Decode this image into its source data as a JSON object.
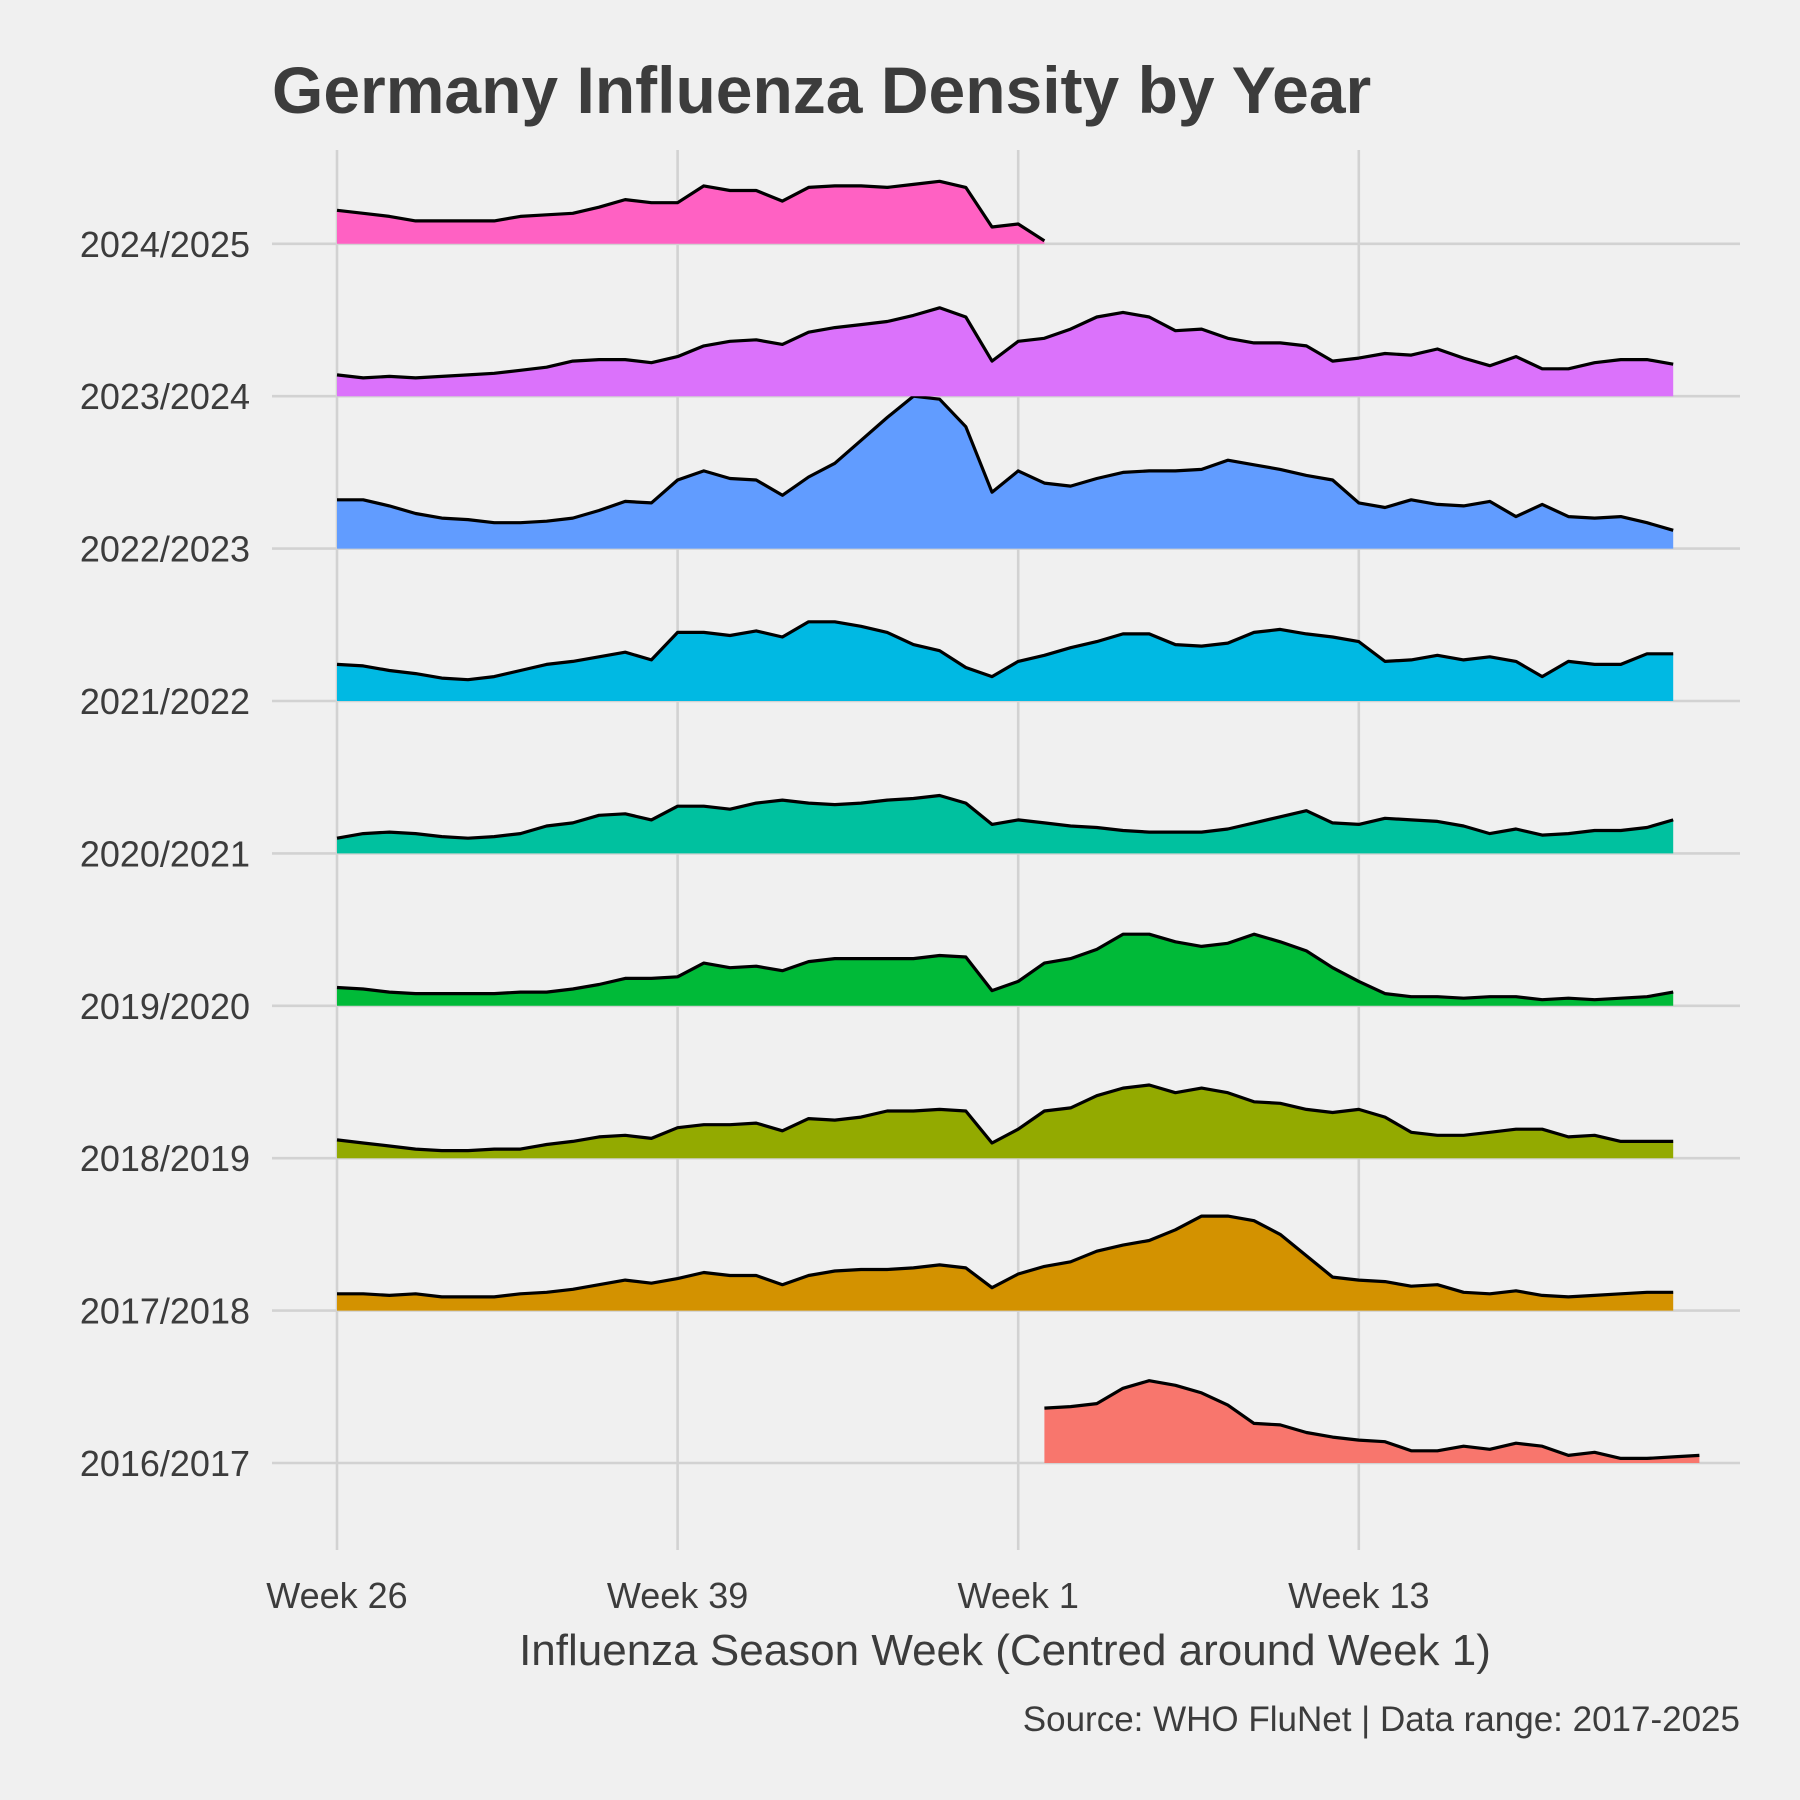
{
  "colors": {
    "background": "#f0f0f0",
    "grid": "#d2d2d2",
    "text": "#3c3c3c",
    "outline": "#000000"
  },
  "chart_data": {
    "type": "ridgeline-area",
    "title": "Germany Influenza Density by Year",
    "xlabel": "Influenza Season Week (Centred around Week 1)",
    "ylabel": "",
    "caption": "Source: WHO FluNet | Data range: 2017-2025",
    "x_axis": {
      "unit": "season week index (0 = Week 26, 26 = Week 1)",
      "range": [
        0,
        52
      ],
      "ticks": [
        {
          "value": 0,
          "label": "Week 26"
        },
        {
          "value": 13,
          "label": "Week 39"
        },
        {
          "value": 26,
          "label": "Week 1"
        },
        {
          "value": 39,
          "label": "Week 13"
        }
      ]
    },
    "ridge_spacing": 1.0,
    "series": [
      {
        "name": "2016/2017",
        "color": "#F8766D",
        "start": 27,
        "values": [
          0.36,
          0.37,
          0.39,
          0.49,
          0.54,
          0.51,
          0.46,
          0.38,
          0.26,
          0.25,
          0.2,
          0.17,
          0.15,
          0.14,
          0.08,
          0.08,
          0.11,
          0.09,
          0.13,
          0.11,
          0.05,
          0.07,
          0.03,
          0.03,
          0.04,
          0.05
        ]
      },
      {
        "name": "2017/2018",
        "color": "#D39200",
        "start": 0,
        "values": [
          0.11,
          0.11,
          0.1,
          0.11,
          0.09,
          0.09,
          0.09,
          0.11,
          0.12,
          0.14,
          0.17,
          0.2,
          0.18,
          0.21,
          0.25,
          0.23,
          0.23,
          0.17,
          0.23,
          0.26,
          0.27,
          0.27,
          0.28,
          0.3,
          0.28,
          0.15,
          0.24,
          0.29,
          0.32,
          0.39,
          0.43,
          0.46,
          0.53,
          0.62,
          0.62,
          0.59,
          0.5,
          0.36,
          0.22,
          0.2,
          0.19,
          0.16,
          0.17,
          0.12,
          0.11,
          0.13,
          0.1,
          0.09,
          0.1,
          0.11,
          0.12,
          0.12
        ]
      },
      {
        "name": "2018/2019",
        "color": "#93AA00",
        "start": 0,
        "values": [
          0.12,
          0.1,
          0.08,
          0.06,
          0.05,
          0.05,
          0.06,
          0.06,
          0.09,
          0.11,
          0.14,
          0.15,
          0.13,
          0.2,
          0.22,
          0.22,
          0.23,
          0.18,
          0.26,
          0.25,
          0.27,
          0.31,
          0.31,
          0.32,
          0.31,
          0.1,
          0.19,
          0.31,
          0.33,
          0.41,
          0.46,
          0.48,
          0.43,
          0.46,
          0.43,
          0.37,
          0.36,
          0.32,
          0.3,
          0.32,
          0.27,
          0.17,
          0.15,
          0.15,
          0.17,
          0.19,
          0.19,
          0.14,
          0.15,
          0.11,
          0.11,
          0.11
        ]
      },
      {
        "name": "2019/2020",
        "color": "#00BA38",
        "start": 0,
        "values": [
          0.12,
          0.11,
          0.09,
          0.08,
          0.08,
          0.08,
          0.08,
          0.09,
          0.09,
          0.11,
          0.14,
          0.18,
          0.18,
          0.19,
          0.28,
          0.25,
          0.26,
          0.23,
          0.29,
          0.31,
          0.31,
          0.31,
          0.31,
          0.33,
          0.32,
          0.1,
          0.16,
          0.28,
          0.31,
          0.37,
          0.47,
          0.47,
          0.42,
          0.39,
          0.41,
          0.47,
          0.42,
          0.36,
          0.25,
          0.16,
          0.08,
          0.06,
          0.06,
          0.05,
          0.06,
          0.06,
          0.04,
          0.05,
          0.04,
          0.05,
          0.06,
          0.09
        ]
      },
      {
        "name": "2020/2021",
        "color": "#00C19F",
        "start": 0,
        "values": [
          0.1,
          0.13,
          0.14,
          0.13,
          0.11,
          0.1,
          0.11,
          0.13,
          0.18,
          0.2,
          0.25,
          0.26,
          0.22,
          0.31,
          0.31,
          0.29,
          0.33,
          0.35,
          0.33,
          0.32,
          0.33,
          0.35,
          0.36,
          0.38,
          0.33,
          0.19,
          0.22,
          0.2,
          0.18,
          0.17,
          0.15,
          0.14,
          0.14,
          0.14,
          0.16,
          0.2,
          0.24,
          0.28,
          0.2,
          0.19,
          0.23,
          0.22,
          0.21,
          0.18,
          0.13,
          0.16,
          0.12,
          0.13,
          0.15,
          0.15,
          0.17,
          0.22
        ]
      },
      {
        "name": "2021/2022",
        "color": "#00B9E3",
        "start": 0,
        "values": [
          0.24,
          0.23,
          0.2,
          0.18,
          0.15,
          0.14,
          0.16,
          0.2,
          0.24,
          0.26,
          0.29,
          0.32,
          0.27,
          0.45,
          0.45,
          0.43,
          0.46,
          0.42,
          0.52,
          0.52,
          0.49,
          0.45,
          0.37,
          0.33,
          0.22,
          0.16,
          0.26,
          0.3,
          0.35,
          0.39,
          0.44,
          0.44,
          0.37,
          0.36,
          0.38,
          0.45,
          0.47,
          0.44,
          0.42,
          0.39,
          0.26,
          0.27,
          0.3,
          0.27,
          0.29,
          0.26,
          0.16,
          0.26,
          0.24,
          0.24,
          0.31,
          0.31
        ]
      },
      {
        "name": "2022/2023",
        "color": "#619CFF",
        "start": 0,
        "values": [
          0.32,
          0.32,
          0.28,
          0.23,
          0.2,
          0.19,
          0.17,
          0.17,
          0.18,
          0.2,
          0.25,
          0.31,
          0.3,
          0.45,
          0.51,
          0.46,
          0.45,
          0.35,
          0.47,
          0.56,
          0.71,
          0.86,
          1.0,
          0.98,
          0.8,
          0.37,
          0.51,
          0.43,
          0.41,
          0.46,
          0.5,
          0.51,
          0.51,
          0.52,
          0.58,
          0.55,
          0.52,
          0.48,
          0.45,
          0.3,
          0.27,
          0.32,
          0.29,
          0.28,
          0.31,
          0.21,
          0.29,
          0.21,
          0.2,
          0.21,
          0.17,
          0.12
        ]
      },
      {
        "name": "2023/2024",
        "color": "#DB72FB",
        "start": 0,
        "values": [
          0.14,
          0.12,
          0.13,
          0.12,
          0.13,
          0.14,
          0.15,
          0.17,
          0.19,
          0.23,
          0.24,
          0.24,
          0.22,
          0.26,
          0.33,
          0.36,
          0.37,
          0.34,
          0.42,
          0.45,
          0.47,
          0.49,
          0.53,
          0.58,
          0.52,
          0.23,
          0.36,
          0.38,
          0.44,
          0.52,
          0.55,
          0.52,
          0.43,
          0.44,
          0.38,
          0.35,
          0.35,
          0.33,
          0.23,
          0.25,
          0.28,
          0.27,
          0.31,
          0.25,
          0.2,
          0.26,
          0.18,
          0.18,
          0.22,
          0.24,
          0.24,
          0.21
        ]
      },
      {
        "name": "2024/2025",
        "color": "#FF61C3",
        "start": 0,
        "values": [
          0.22,
          0.2,
          0.18,
          0.15,
          0.15,
          0.15,
          0.15,
          0.18,
          0.19,
          0.2,
          0.24,
          0.29,
          0.27,
          0.27,
          0.38,
          0.35,
          0.35,
          0.28,
          0.37,
          0.38,
          0.38,
          0.37,
          0.39,
          0.41,
          0.37,
          0.11,
          0.13,
          0.02
        ]
      }
    ]
  }
}
